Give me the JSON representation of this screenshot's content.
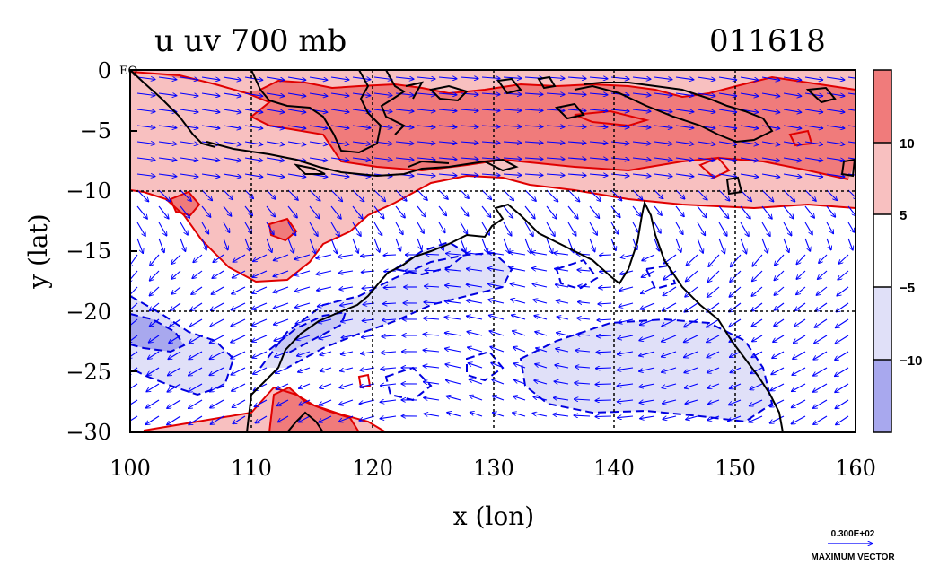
{
  "map": {
    "title_left": "u uv 700 mb",
    "title_right": "011618",
    "xlabel": "x (lon)",
    "ylabel": "y (lat)",
    "x_ticks": [
      "100",
      "110",
      "120",
      "130",
      "140",
      "150",
      "160"
    ],
    "y_ticks": [
      "0",
      "−5",
      "−10",
      "−15",
      "−20",
      "−25",
      "−30"
    ],
    "equator_label": "EQ",
    "colorbar_ticks": [
      "10",
      "5",
      "−5",
      "−10"
    ],
    "vector_scale_value": "0.300E+02",
    "vector_scale_label": "MAXIMUM VECTOR"
  },
  "chart_data": {
    "type": "heatmap",
    "description_fields": "zonal wind u shaded with wind vectors uv",
    "xlim": [
      100,
      160
    ],
    "ylim": [
      -30,
      0
    ],
    "x_grid": [
      100,
      110,
      120,
      130,
      140,
      150,
      160
    ],
    "y_grid": [
      0,
      -5,
      -10,
      -15,
      -20,
      -25,
      -30
    ],
    "grid": true,
    "contour_levels": [
      -10,
      -5,
      5,
      10
    ],
    "colors": {
      "gt_10": "#f07b7b",
      "5_to_10": "#f8c0c0",
      "neutral": "#ffffff",
      "m5_to_m10": "#e0e0f8",
      "lt_m10": "#a8a8ee",
      "positive_contour": "#e00000",
      "negative_contour": "#0000e0",
      "vectors": "#0000ff",
      "coast": "#000000"
    }
  }
}
